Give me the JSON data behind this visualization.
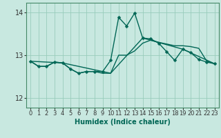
{
  "xlabel": "Humidex (Indice chaleur)",
  "background_color": "#c8e8e0",
  "grid_color": "#99ccbb",
  "line_color": "#006655",
  "xlim": [
    -0.5,
    23.5
  ],
  "ylim": [
    11.78,
    14.22
  ],
  "yticks": [
    12,
    13,
    14
  ],
  "xticks": [
    0,
    1,
    2,
    3,
    4,
    5,
    6,
    7,
    8,
    9,
    10,
    11,
    12,
    13,
    14,
    15,
    16,
    17,
    18,
    19,
    20,
    21,
    22,
    23
  ],
  "series1_x": [
    0,
    1,
    2,
    3,
    4,
    5,
    6,
    7,
    8,
    9,
    10,
    11,
    12,
    13,
    14,
    15,
    16,
    17,
    18,
    19,
    20,
    21,
    22,
    23
  ],
  "series1_y": [
    12.86,
    12.74,
    12.74,
    12.84,
    12.82,
    12.68,
    12.58,
    12.62,
    12.62,
    12.62,
    12.88,
    13.88,
    13.68,
    13.98,
    13.4,
    13.38,
    13.28,
    13.08,
    12.88,
    13.14,
    13.06,
    12.9,
    12.84,
    12.8
  ],
  "series2_x": [
    0,
    1,
    2,
    3,
    4,
    5,
    6,
    7,
    8,
    9,
    10,
    11,
    12,
    13,
    14,
    15,
    16,
    17,
    18,
    19,
    20,
    21,
    22,
    23
  ],
  "series2_y": [
    12.86,
    12.74,
    12.74,
    12.84,
    12.82,
    12.68,
    12.58,
    12.62,
    12.62,
    12.58,
    12.58,
    13.0,
    13.0,
    13.1,
    13.28,
    13.35,
    13.3,
    13.26,
    13.22,
    13.22,
    13.2,
    13.16,
    12.86,
    12.8
  ],
  "series3_x": [
    0,
    4,
    10,
    14,
    19,
    23
  ],
  "series3_y": [
    12.86,
    12.82,
    12.58,
    13.4,
    13.14,
    12.8
  ],
  "marker_size": 2.5,
  "line_width": 1.0,
  "tick_fontsize": 6,
  "xlabel_fontsize": 7
}
